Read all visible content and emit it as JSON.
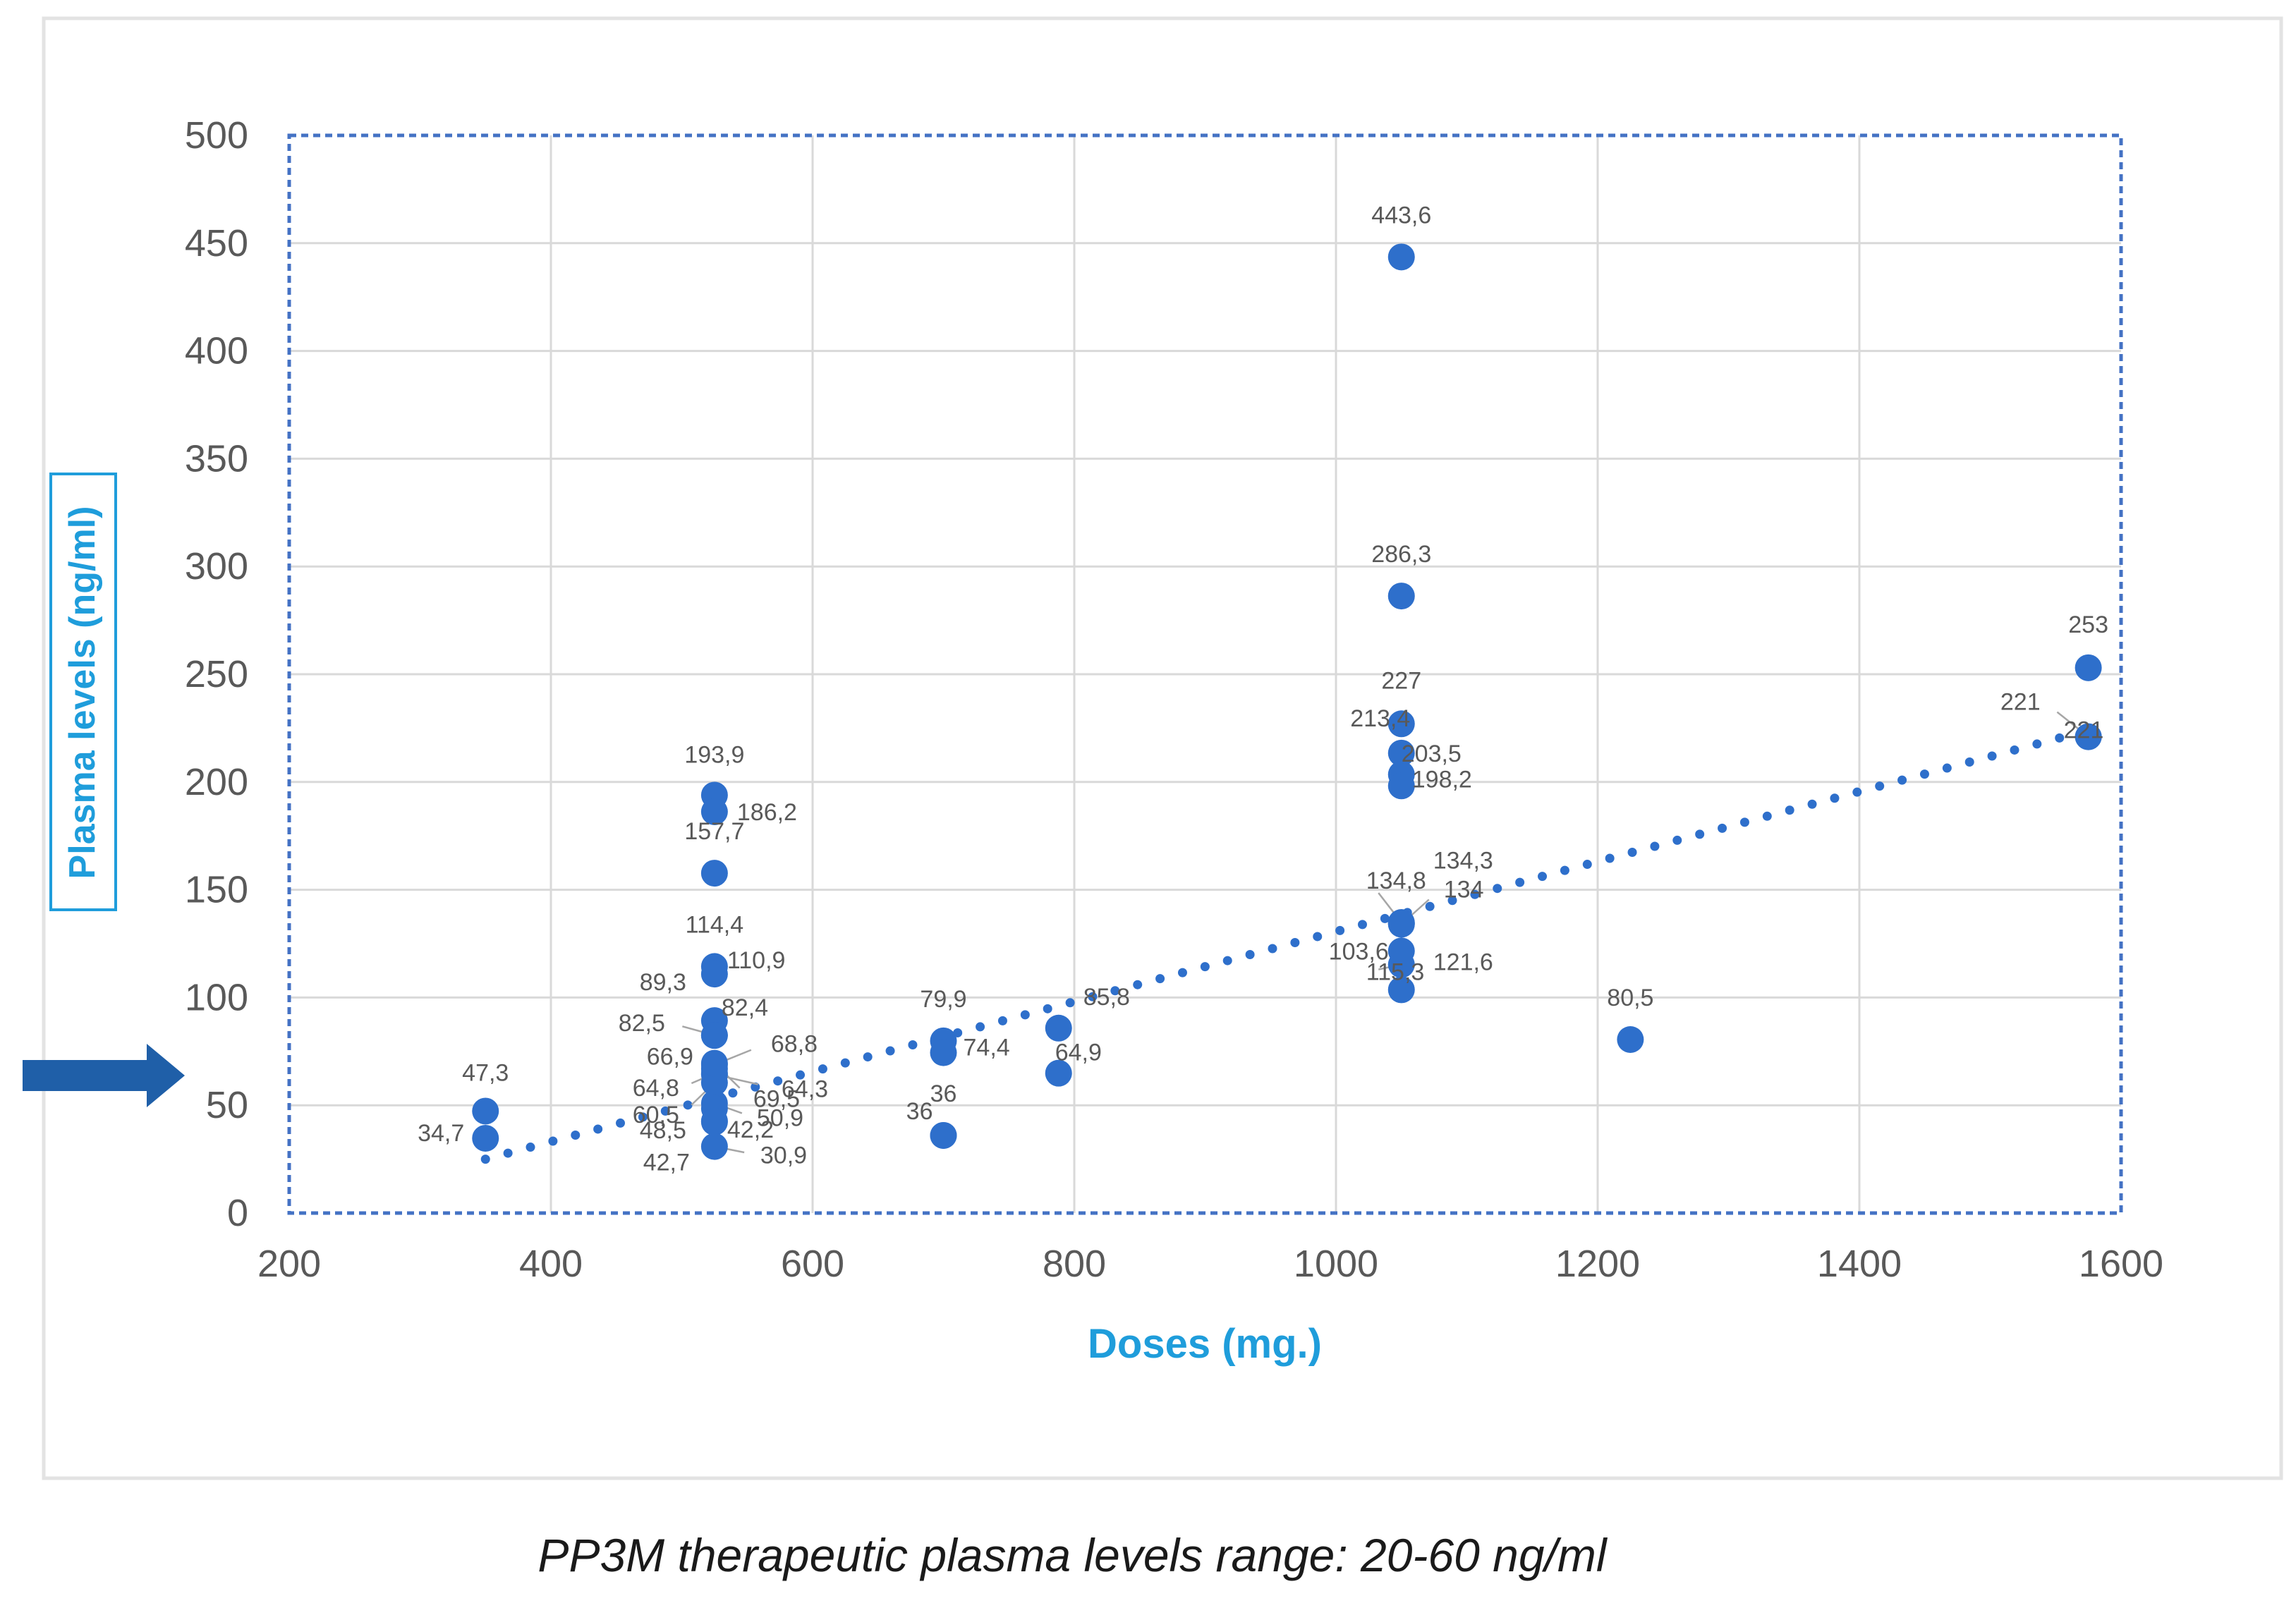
{
  "chart_data": {
    "type": "scatter",
    "title": "",
    "xlabel": "Doses (mg.)",
    "ylabel": "Plasma levels  (ng/ml)",
    "xlim": [
      200,
      1600
    ],
    "ylim": [
      0,
      500
    ],
    "x_ticks": [
      "200",
      "400",
      "600",
      "800",
      "1000",
      "1200",
      "1400",
      "1600"
    ],
    "y_ticks": [
      "0",
      "50",
      "100",
      "150",
      "200",
      "250",
      "300",
      "350",
      "400",
      "450",
      "500"
    ],
    "grid": true,
    "legend": "none",
    "series": [
      {
        "name": "Plasma levels",
        "points": [
          {
            "x": 350,
            "y": 47.3,
            "label": "47,3"
          },
          {
            "x": 350,
            "y": 34.7,
            "label": "34,7"
          },
          {
            "x": 525,
            "y": 193.9,
            "label": "193,9"
          },
          {
            "x": 525,
            "y": 186.2,
            "label": "186,2"
          },
          {
            "x": 525,
            "y": 157.7,
            "label": "157,7"
          },
          {
            "x": 525,
            "y": 114.4,
            "label": "114,4"
          },
          {
            "x": 525,
            "y": 110.9,
            "label": "110,9"
          },
          {
            "x": 525,
            "y": 89.3,
            "label": "89,3"
          },
          {
            "x": 525,
            "y": 82.5,
            "label": "82,5"
          },
          {
            "x": 525,
            "y": 82.4,
            "label": "82,4"
          },
          {
            "x": 525,
            "y": 68.8,
            "label": "68,8"
          },
          {
            "x": 525,
            "y": 66.9,
            "label": "66,9"
          },
          {
            "x": 525,
            "y": 64.8,
            "label": "64,8"
          },
          {
            "x": 525,
            "y": 64.3,
            "label": "64,3"
          },
          {
            "x": 525,
            "y": 60.5,
            "label": "60,5"
          },
          {
            "x": 525,
            "y": 50.9,
            "label": "50,9"
          },
          {
            "x": 525,
            "y": 69.5,
            "label": "69,5"
          },
          {
            "x": 525,
            "y": 48.5,
            "label": "48,5"
          },
          {
            "x": 525,
            "y": 42.2,
            "label": "42,2"
          },
          {
            "x": 525,
            "y": 42.7,
            "label": "42,7"
          },
          {
            "x": 525,
            "y": 30.9,
            "label": "30,9"
          },
          {
            "x": 700,
            "y": 79.9,
            "label": "79,9"
          },
          {
            "x": 700,
            "y": 74.4,
            "label": "74,4"
          },
          {
            "x": 700,
            "y": 36,
            "label": "36"
          },
          {
            "x": 700,
            "y": 36,
            "label": "36"
          },
          {
            "x": 788,
            "y": 85.8,
            "label": "85,8"
          },
          {
            "x": 788,
            "y": 64.9,
            "label": "64,9"
          },
          {
            "x": 1050,
            "y": 443.6,
            "label": "443,6"
          },
          {
            "x": 1050,
            "y": 286.3,
            "label": "286,3"
          },
          {
            "x": 1050,
            "y": 227,
            "label": "227"
          },
          {
            "x": 1050,
            "y": 213.4,
            "label": "213,4"
          },
          {
            "x": 1050,
            "y": 203.5,
            "label": "203,5"
          },
          {
            "x": 1050,
            "y": 198.2,
            "label": "198,2"
          },
          {
            "x": 1050,
            "y": 134.8,
            "label": "134,8"
          },
          {
            "x": 1050,
            "y": 134.3,
            "label": "134,3"
          },
          {
            "x": 1050,
            "y": 134,
            "label": "134"
          },
          {
            "x": 1050,
            "y": 115.3,
            "label": "115,3"
          },
          {
            "x": 1050,
            "y": 121.6,
            "label": "121,6"
          },
          {
            "x": 1050,
            "y": 103.6,
            "label": "103,6"
          },
          {
            "x": 1225,
            "y": 80.5,
            "label": "80,5"
          },
          {
            "x": 1575,
            "y": 253,
            "label": "253"
          },
          {
            "x": 1575,
            "y": 221,
            "label": "221"
          },
          {
            "x": 1575,
            "y": 221,
            "label": "221"
          }
        ]
      }
    ],
    "trendline": {
      "type": "linear",
      "style": "dotted",
      "from": {
        "x": 350,
        "y": 25
      },
      "to": {
        "x": 1575,
        "y": 224
      }
    },
    "annotations": [
      {
        "type": "arrow",
        "points_to": "y=60",
        "direction": "right"
      }
    ],
    "colors": {
      "marker": "#2e6fcb",
      "axis_title": "#1f9ddb",
      "border": "#4472c4",
      "arrow": "#1f5fa8"
    }
  },
  "caption": "PP3M therapeutic plasma levels range: 20-60 ng/ml"
}
